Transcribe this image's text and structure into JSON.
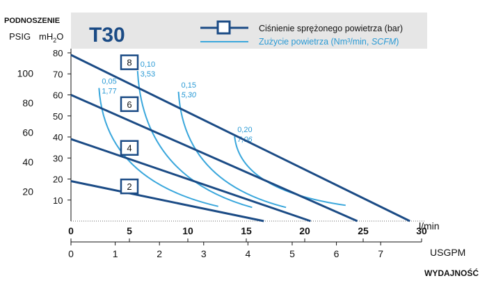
{
  "chart_data": {
    "type": "line",
    "title": "T30",
    "header": {
      "left_top": "PODNOSZENIE",
      "psig": "PSIG",
      "mh2o": "mH",
      "mh2o_sub": "2",
      "mh2o_tail": "O"
    },
    "legend": {
      "pressure_label": "Ciśnienie sprężonego powietrza (bar)",
      "air_label_prefix": "Zużycie powietrza (Nm³/min, ",
      "air_label_italic": "SCFM",
      "air_label_suffix": ")"
    },
    "x_axis": {
      "unit_top": "l/min",
      "ticks_top": [
        "0",
        "5",
        "10",
        "15",
        "20",
        "25",
        "30"
      ],
      "range_lmin": [
        0,
        30
      ],
      "unit_bottom": "USGPM",
      "ticks_bottom": [
        "0",
        "1",
        "2",
        "3",
        "4",
        "5",
        "6",
        "7"
      ],
      "label": "WYDAJNOŚĆ"
    },
    "y_axis": {
      "range_mh2o": [
        0,
        80
      ],
      "ticks_mh2o": [
        "10",
        "20",
        "30",
        "40",
        "50",
        "60",
        "70",
        "80"
      ],
      "ticks_psig": [
        "20",
        "40",
        "60",
        "80",
        "100"
      ]
    },
    "series_pressure": [
      {
        "name": "8",
        "x": [
          0,
          29
        ],
        "y": [
          79,
          0
        ],
        "marker_at": [
          5.0,
          75.5
        ]
      },
      {
        "name": "6",
        "x": [
          0,
          24.5
        ],
        "y": [
          60,
          0
        ],
        "marker_at": [
          5.0,
          55.6
        ]
      },
      {
        "name": "4",
        "x": [
          0,
          20.5
        ],
        "y": [
          39,
          0
        ],
        "marker_at": [
          5.0,
          34.8
        ]
      },
      {
        "name": "2",
        "x": [
          0,
          16.5
        ],
        "y": [
          19,
          0
        ],
        "marker_at": [
          5.0,
          16.5
        ]
      }
    ],
    "series_air": [
      {
        "label_top": "0,05",
        "label_bottom": "1,77",
        "bottom_italic": false,
        "x": [
          2.4,
          12.6
        ],
        "y": [
          63.3,
          7
        ]
      },
      {
        "label_top": "0,10",
        "label_bottom": "3,53",
        "bottom_italic": false,
        "x": [
          5.7,
          15.5
        ],
        "y": [
          71.4,
          6.5
        ]
      },
      {
        "label_top": "0,15",
        "label_bottom": "5,30",
        "bottom_italic": true,
        "x": [
          9.2,
          18.4
        ],
        "y": [
          61.5,
          6.5
        ]
      },
      {
        "label_top": "0,20",
        "label_bottom": "7,06",
        "bottom_italic": true,
        "x": [
          14.0,
          23.5
        ],
        "y": [
          40.3,
          7.5
        ]
      }
    ],
    "colors": {
      "pressure_line": "#1b4b85",
      "air_line": "#3aa7dc",
      "header_bg": "#e6e6e6",
      "title": "#1b4b85",
      "air_label": "#2a9ad5"
    }
  }
}
